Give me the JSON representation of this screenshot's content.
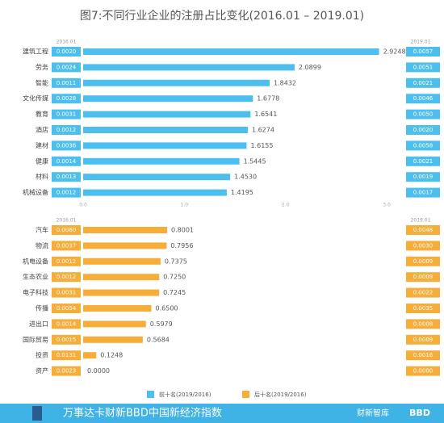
{
  "chart_data": [
    {
      "type": "bar",
      "orientation": "horizontal",
      "title": "图7:不同行业企业的注册占比变化(2016.01 – 2019.01)",
      "categories": [
        "建筑工程",
        "劳务",
        "智能",
        "文化传媒",
        "教育",
        "酒店",
        "建材",
        "健康",
        "材料",
        "机械设备"
      ],
      "series": [
        {
          "name": "前十名(2019/2016)",
          "color": "#4dbfef",
          "values": [
            2.9248,
            2.0899,
            1.8432,
            1.6778,
            1.6541,
            1.6274,
            1.6155,
            1.5445,
            1.453,
            1.4195
          ],
          "value_labels": [
            "2.9248",
            "2.0899",
            "1.8432",
            "1.6778",
            "1.6541",
            "1.6274",
            "1.6155",
            "1.5445",
            "1.4530",
            "1.4195"
          ]
        }
      ],
      "left_column": {
        "name": "2016.01",
        "values": [
          0.002,
          0.0024,
          0.0011,
          0.0028,
          0.0031,
          0.0012,
          0.0036,
          0.0014,
          0.0013,
          0.0012
        ],
        "value_labels": [
          "0.0020",
          "0.0024",
          "0.0011",
          "0.0028",
          "0.0031",
          "0.0012",
          "0.0036",
          "0.0014",
          "0.0013",
          "0.0012"
        ]
      },
      "right_column": {
        "name": "2019.01",
        "values": [
          0.0057,
          0.0051,
          0.0021,
          0.0046,
          0.005,
          0.002,
          0.0058,
          0.0021,
          0.0019,
          0.0017
        ],
        "value_labels": [
          "0.0057",
          "0.0051",
          "0.0021",
          "0.0046",
          "0.0050",
          "0.0020",
          "0.0058",
          "0.0021",
          "0.0019",
          "0.0017"
        ]
      },
      "xlim": [
        0,
        3
      ],
      "xticks": [
        {
          "value": 0,
          "label": "0.0"
        },
        {
          "value": 1,
          "label": "1.0"
        },
        {
          "value": 2,
          "label": "2.0"
        },
        {
          "value": 3,
          "label": "3.0"
        }
      ]
    },
    {
      "type": "bar",
      "orientation": "horizontal",
      "categories": [
        "汽车",
        "物流",
        "机电设备",
        "生态农业",
        "电子科技",
        "传播",
        "进出口",
        "国际贸易",
        "投资",
        "资产"
      ],
      "series": [
        {
          "name": "后十名(2019/2016)",
          "color": "#f7ad3a",
          "values": [
            0.8001,
            0.7956,
            0.7375,
            0.725,
            0.7245,
            0.65,
            0.5979,
            0.5684,
            0.1248,
            0.0
          ],
          "value_labels": [
            "0.8001",
            "0.7956",
            "0.7375",
            "0.7250",
            "0.7245",
            "0.6500",
            "0.5979",
            "0.5684",
            "0.1248",
            "0.0000"
          ]
        }
      ],
      "left_column": {
        "name": "2016.01",
        "values": [
          0.006,
          0.0037,
          0.0012,
          0.0012,
          0.0031,
          0.0054,
          0.0014,
          0.0015,
          0.0131,
          0.0023
        ],
        "value_labels": [
          "0.0060",
          "0.0037",
          "0.0012",
          "0.0012",
          "0.0031",
          "0.0054",
          "0.0014",
          "0.0015",
          "0.0131",
          "0.0023"
        ]
      },
      "right_column": {
        "name": "2019.01",
        "values": [
          0.0048,
          0.003,
          0.0009,
          0.0009,
          0.0022,
          0.0035,
          0.0008,
          0.0009,
          0.0016,
          0.0
        ],
        "value_labels": [
          "0.0048",
          "0.0030",
          "0.0009",
          "0.0009",
          "0.0022",
          "0.0035",
          "0.0008",
          "0.0009",
          "0.0016",
          "0.0000"
        ]
      }
    }
  ],
  "footer": {
    "title": "万事达卡财新BBD中国新经济指数",
    "logo1": "财新智库",
    "logo2": "BBD"
  }
}
